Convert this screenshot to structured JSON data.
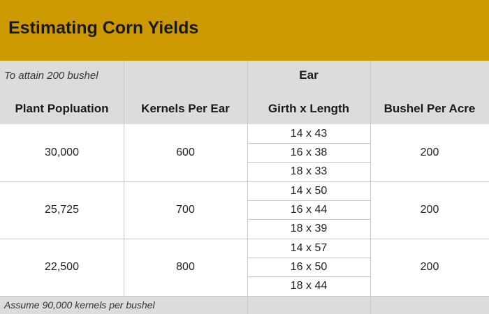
{
  "title": "Estimating Corn Yields",
  "header": {
    "note": "To attain 200 bushel",
    "plant_population": "Plant Popluation",
    "kernels_per_ear": "Kernels Per Ear",
    "ear": "Ear",
    "girth_length": "Girth x Length",
    "bushel_per_acre": "Bushel Per Acre"
  },
  "rows": [
    {
      "population": "30,000",
      "kernels": "600",
      "sizes": [
        "14 x 43",
        "16 x 38",
        "18 x 33"
      ],
      "bushels": "200"
    },
    {
      "population": "25,725",
      "kernels": "700",
      "sizes": [
        "14 x 50",
        "16 x 44",
        "18 x 39"
      ],
      "bushels": "200"
    },
    {
      "population": "22,500",
      "kernels": "800",
      "sizes": [
        "14 x 57",
        "16 x 50",
        "18 x 44"
      ],
      "bushels": "200"
    }
  ],
  "footer": {
    "note": "Assume 90,000 kernels per bushel"
  },
  "colors": {
    "banner": "#cc9900",
    "header_bg": "#dcdcdc",
    "border": "#c8c8c8"
  }
}
